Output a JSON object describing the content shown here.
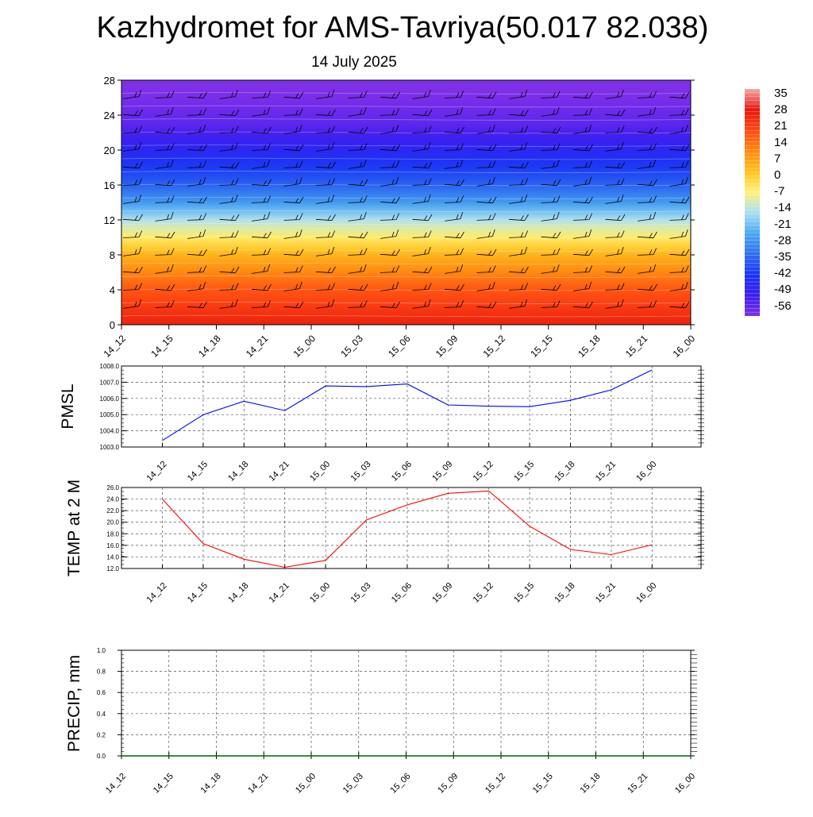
{
  "header": {
    "title": "Kazhydromet for AMS-Tavriya(50.017 82.038)",
    "date": "14 July 2025"
  },
  "colorbar": {
    "labels": [
      "35",
      "28",
      "21",
      "14",
      "7",
      "0",
      "-7",
      "-14",
      "-21",
      "-28",
      "-35",
      "-42",
      "-49",
      "-56"
    ]
  },
  "chart_data": [
    {
      "type": "heatmap",
      "title": "",
      "xlabel": "",
      "ylabel": "",
      "x_ticks": [
        "14_12",
        "14_15",
        "14_18",
        "14_21",
        "15_00",
        "15_03",
        "15_06",
        "15_09",
        "15_12",
        "15_15",
        "15_18",
        "15_21",
        "16_00"
      ],
      "y_ticks": [
        0,
        4,
        8,
        12,
        16,
        20,
        24,
        28
      ],
      "ylim": [
        0,
        28
      ],
      "value_range": [
        -56,
        35
      ],
      "colormap": [
        "#7e2fe8",
        "#3b1ef0",
        "#1a34f5",
        "#2f6ff0",
        "#4aa9f0",
        "#a9def5",
        "#fff27a",
        "#ffc21e",
        "#ff8a10",
        "#ff4a12",
        "#e8160f",
        "#f2a8a8"
      ],
      "profile": [
        {
          "level": 0,
          "value": 25
        },
        {
          "level": 4,
          "value": 17
        },
        {
          "level": 8,
          "value": 4
        },
        {
          "level": 12,
          "value": -14
        },
        {
          "level": 14,
          "value": -25
        },
        {
          "level": 16,
          "value": -33
        },
        {
          "level": 20,
          "value": -44
        },
        {
          "level": 23,
          "value": -52
        },
        {
          "level": 28,
          "value": -58
        }
      ],
      "wind_barbs": true
    },
    {
      "type": "line",
      "ylabel": "PMSL",
      "x": [
        "14_12",
        "14_15",
        "14_18",
        "14_21",
        "15_00",
        "15_03",
        "15_06",
        "15_09",
        "15_12",
        "15_15",
        "15_18",
        "15_21",
        "16_00"
      ],
      "series": [
        {
          "color": "#0000ff",
          "values": [
            1003.4,
            1004.99,
            1005.83,
            1005.25,
            1006.77,
            1006.73,
            1006.89,
            1005.6,
            1005.52,
            1005.49,
            1005.88,
            1006.53,
            1007.76
          ]
        }
      ],
      "y_ticks": [
        "1003.0",
        "1004.0",
        "1005.0",
        "1006.0",
        "1007.0",
        "1008.0"
      ],
      "ylim": [
        1003,
        1008
      ],
      "grid": true
    },
    {
      "type": "line",
      "ylabel": "TEMP at 2 M",
      "x": [
        "14_12",
        "14_15",
        "14_18",
        "14_21",
        "15_00",
        "15_03",
        "15_06",
        "15_09",
        "15_12",
        "15_15",
        "15_18",
        "15_21",
        "16_00"
      ],
      "series": [
        {
          "color": "#ff0000",
          "values": [
            24.0,
            16.3,
            13.6,
            12.2,
            13.4,
            20.4,
            23.0,
            25.0,
            25.4,
            19.3,
            15.3,
            14.4,
            16.1
          ]
        }
      ],
      "y_ticks": [
        "12.0",
        "14.0",
        "16.0",
        "18.0",
        "20.0",
        "22.0",
        "24.0",
        "26.0"
      ],
      "ylim": [
        12,
        26
      ],
      "grid": true
    },
    {
      "type": "line",
      "ylabel": "PRECIP, mm",
      "x": [
        "14_12",
        "14_15",
        "14_18",
        "14_21",
        "15_00",
        "15_03",
        "15_06",
        "15_09",
        "15_12",
        "15_15",
        "15_18",
        "15_21",
        "16_00"
      ],
      "series": [
        {
          "color": "#006400",
          "values": [
            0,
            0,
            0,
            0,
            0,
            0,
            0,
            0,
            0,
            0,
            0,
            0,
            0
          ]
        }
      ],
      "y_ticks": [
        "0.0",
        "0.2",
        "0.4",
        "0.6",
        "0.8",
        "1.0"
      ],
      "ylim": [
        0,
        1
      ],
      "grid": true
    }
  ]
}
